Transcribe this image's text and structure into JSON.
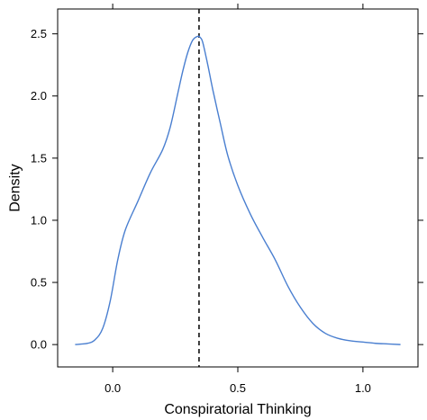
{
  "chart_data": {
    "type": "line",
    "title": "",
    "xlabel": "Conspiratorial Thinking",
    "ylabel": "Density",
    "xlim": [
      -0.22,
      1.22
    ],
    "ylim": [
      -0.18,
      2.7
    ],
    "x_ticks": [
      0.0,
      0.5,
      1.0
    ],
    "x_tick_labels": [
      "0.0",
      "0.5",
      "1.0"
    ],
    "y_ticks": [
      0.0,
      0.5,
      1.0,
      1.5,
      2.0,
      2.5
    ],
    "y_tick_labels": [
      "0.0",
      "0.5",
      "1.0",
      "1.5",
      "2.0",
      "2.5"
    ],
    "grid": false,
    "series": [
      {
        "color": "#4a7fd0",
        "x": [
          -0.15,
          -0.1,
          -0.07,
          -0.04,
          -0.01,
          0.02,
          0.05,
          0.1,
          0.15,
          0.2,
          0.23,
          0.26,
          0.28,
          0.3,
          0.32,
          0.34,
          0.35,
          0.36,
          0.38,
          0.4,
          0.43,
          0.46,
          0.5,
          0.55,
          0.6,
          0.65,
          0.7,
          0.75,
          0.8,
          0.85,
          0.9,
          0.95,
          1.0,
          1.05,
          1.1,
          1.15
        ],
        "y": [
          0.0,
          0.01,
          0.04,
          0.13,
          0.35,
          0.68,
          0.92,
          1.15,
          1.38,
          1.57,
          1.75,
          2.02,
          2.2,
          2.35,
          2.45,
          2.48,
          2.47,
          2.43,
          2.25,
          2.05,
          1.78,
          1.52,
          1.28,
          1.05,
          0.86,
          0.68,
          0.47,
          0.3,
          0.17,
          0.09,
          0.05,
          0.03,
          0.02,
          0.01,
          0.005,
          0.0
        ]
      }
    ],
    "reference_lines": [
      {
        "orientation": "vertical",
        "x": 0.345,
        "style": "dashed",
        "color": "#000000"
      }
    ]
  }
}
